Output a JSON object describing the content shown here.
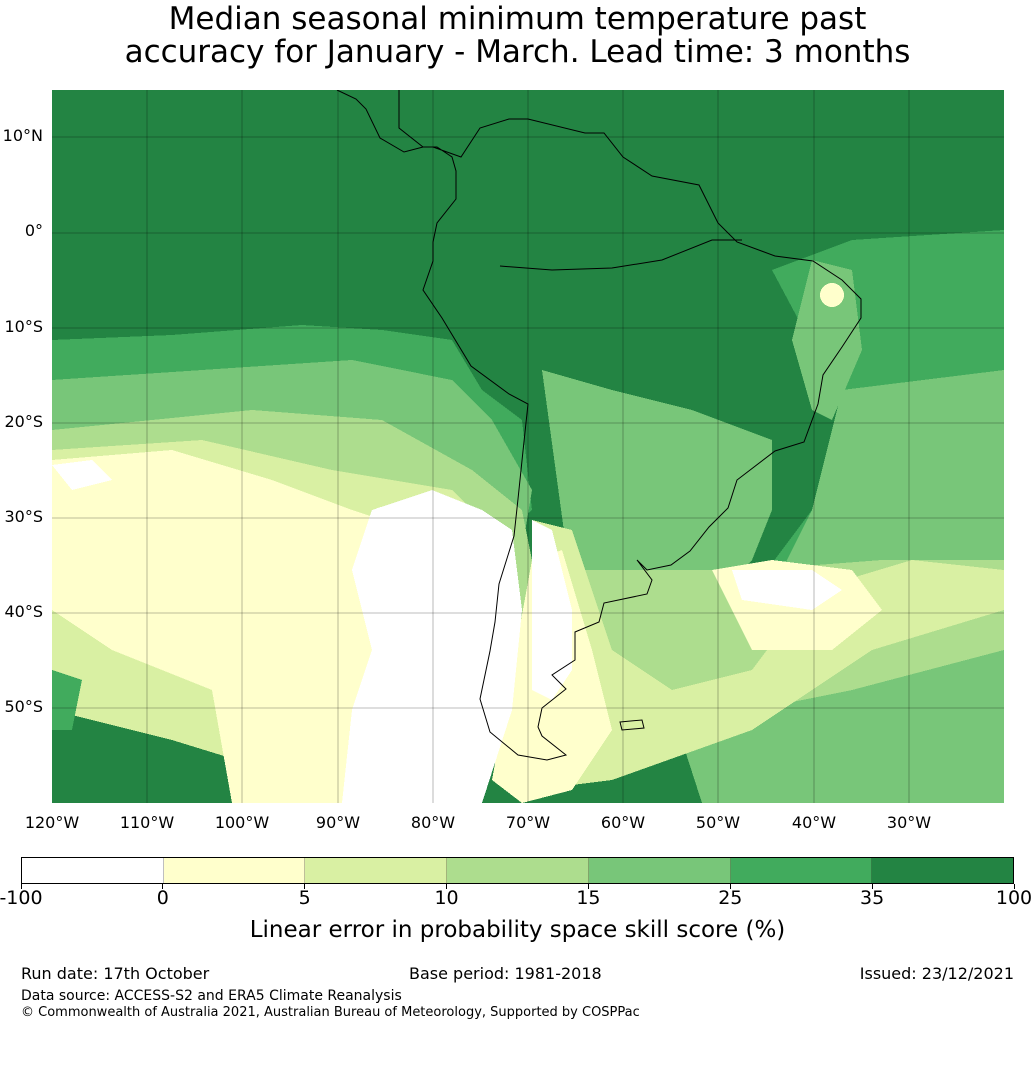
{
  "title": {
    "line1": "Median seasonal minimum temperature past",
    "line2": "accuracy for January - March. Lead time: 3 months"
  },
  "map": {
    "lat_labels": [
      "10°N",
      "0°",
      "10°S",
      "20°S",
      "30°S",
      "40°S",
      "50°S"
    ],
    "lon_labels": [
      "120°W",
      "110°W",
      "100°W",
      "90°W",
      "80°W",
      "70°W",
      "60°W",
      "50°W",
      "40°W",
      "30°W"
    ]
  },
  "colorbar": {
    "ticks": [
      "-100",
      "0",
      "5",
      "10",
      "15",
      "25",
      "35",
      "100"
    ],
    "colors": [
      "#ffffff",
      "#ffffcc",
      "#d9f0a3",
      "#addd8e",
      "#78c679",
      "#41ab5d",
      "#238443"
    ],
    "label": "Linear error in probability space skill score (%)"
  },
  "footer": {
    "run_date": "Run date: 17th October",
    "base_period": "Base period: 1981-2018",
    "issued": "Issued: 23/12/2021",
    "data_source": "Data source: ACCESS-S2 and ERA5 Climate Reanalysis",
    "copyright": "© Commonwealth of Australia 2021, Australian Bureau of Meteorology, Supported by COSPPac"
  }
}
